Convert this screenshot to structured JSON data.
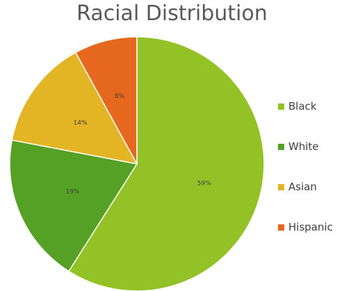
{
  "chart_data": {
    "type": "pie",
    "title": "Racial Distribution",
    "categories": [
      "Black",
      "White",
      "Asian",
      "Hispanic"
    ],
    "values": [
      59,
      19,
      14,
      8
    ],
    "labels": [
      "59%",
      "19%",
      "14%",
      "8%"
    ],
    "colors": [
      "#92c225",
      "#55a125",
      "#e3b424",
      "#e6681e"
    ],
    "legend_position": "right"
  }
}
